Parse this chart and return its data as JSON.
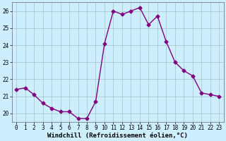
{
  "x": [
    0,
    1,
    2,
    3,
    4,
    5,
    6,
    7,
    8,
    9,
    10,
    11,
    12,
    13,
    14,
    15,
    16,
    17,
    18,
    19,
    20,
    21,
    22,
    23
  ],
  "y": [
    21.4,
    21.5,
    21.1,
    20.6,
    20.3,
    20.1,
    20.1,
    19.7,
    19.7,
    20.7,
    24.1,
    26.0,
    25.8,
    26.0,
    26.2,
    25.2,
    25.7,
    24.2,
    23.0,
    22.5,
    22.2,
    21.2,
    21.1,
    21.0
  ],
  "line_color": "#800080",
  "marker": "D",
  "marker_size": 2.5,
  "bg_color": "#cceeff",
  "grid_color": "#aacccc",
  "xlabel": "Windchill (Refroidissement éolien,°C)",
  "xlabel_fontsize": 6.5,
  "xlim": [
    -0.5,
    23.5
  ],
  "ylim": [
    19.5,
    26.5
  ],
  "yticks": [
    20,
    21,
    22,
    23,
    24,
    25,
    26
  ],
  "xticks": [
    0,
    1,
    2,
    3,
    4,
    5,
    6,
    7,
    8,
    9,
    10,
    11,
    12,
    13,
    14,
    15,
    16,
    17,
    18,
    19,
    20,
    21,
    22,
    23
  ],
  "tick_fontsize": 5.5
}
